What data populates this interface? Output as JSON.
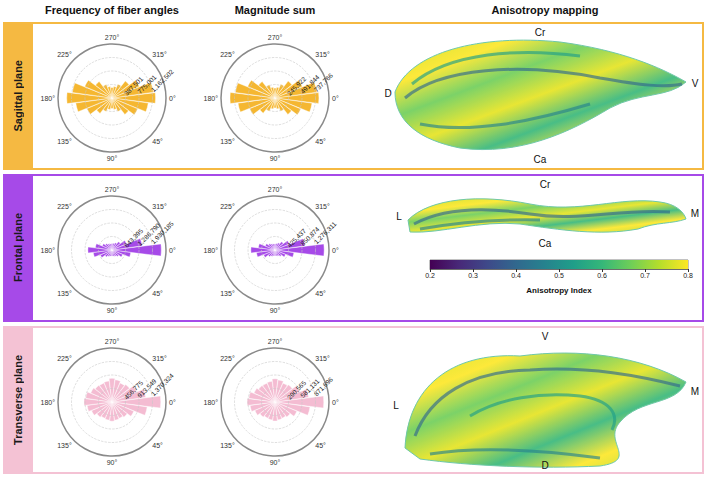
{
  "column_titles": [
    "Frequency of fiber angles",
    "Magnitude sum",
    "Anisotropy mapping"
  ],
  "rows": [
    {
      "label": "Sagittal plane",
      "color": "#f5b942",
      "directions": [
        "Cr",
        "Ca",
        "D",
        "V"
      ]
    },
    {
      "label": "Frontal plane",
      "color": "#a64ae8",
      "directions": [
        "Cr",
        "Ca",
        "L",
        "M"
      ]
    },
    {
      "label": "Transverse plane",
      "color": "#f4c2d4",
      "directions": [
        "V",
        "D",
        "L",
        "M"
      ]
    }
  ],
  "chart_data": [
    {
      "type": "polar",
      "color": "#f5b731",
      "grid": true,
      "categories": [
        "0°",
        null,
        null,
        "45°",
        null,
        null,
        "90°",
        null,
        null,
        "135°",
        null,
        null,
        "180°",
        null,
        null,
        "225°",
        null,
        null,
        "270°",
        null,
        null,
        "315°",
        null,
        null
      ],
      "values": [
        1250000,
        1050000,
        800000,
        600000,
        420000,
        330000,
        300000,
        330000,
        420000,
        560000,
        780000,
        1050000,
        1300000,
        1150000,
        850000,
        600000,
        420000,
        330000,
        300000,
        330000,
        430000,
        620000,
        850000,
        1200000
      ],
      "ylim": [
        0,
        1550003
      ],
      "yticks": [
        387501,
        775001,
        1162502
      ]
    },
    {
      "type": "polar",
      "color": "#f5b731",
      "grid": true,
      "categories": [
        "0°",
        null,
        null,
        "45°",
        null,
        null,
        "90°",
        null,
        null,
        "135°",
        null,
        null,
        "180°",
        null,
        null,
        "225°",
        null,
        null,
        "270°",
        null,
        null,
        "315°",
        null,
        null
      ],
      "values": [
        800000,
        680000,
        510000,
        380000,
        260000,
        200000,
        180000,
        200000,
        260000,
        350000,
        500000,
        680000,
        820000,
        730000,
        540000,
        380000,
        260000,
        200000,
        180000,
        200000,
        270000,
        390000,
        540000,
        770000
      ],
      "ylim": [
        0,
        983688
      ],
      "yticks": [
        245922,
        491844,
        737766
      ]
    },
    {
      "type": "polar",
      "color": "#a64ae8",
      "grid": true,
      "categories": [
        "0°",
        null,
        null,
        "45°",
        null,
        null,
        "90°",
        null,
        null,
        "135°",
        null,
        null,
        "180°",
        null,
        null,
        "225°",
        null,
        null,
        "270°",
        null,
        null,
        "315°",
        null,
        null
      ],
      "values": [
        2350000,
        900000,
        550000,
        400000,
        330000,
        300000,
        290000,
        300000,
        340000,
        420000,
        600000,
        900000,
        1150000,
        800000,
        500000,
        400000,
        330000,
        300000,
        300000,
        320000,
        380000,
        500000,
        750000,
        1450000
      ],
      "ylim": [
        0,
        2573580
      ],
      "yticks": [
        643395,
        1286790,
        1930185
      ]
    },
    {
      "type": "polar",
      "color": "#a64ae8",
      "grid": true,
      "categories": [
        "0°",
        null,
        null,
        "45°",
        null,
        null,
        "90°",
        null,
        null,
        "135°",
        null,
        null,
        "180°",
        null,
        null,
        "225°",
        null,
        null,
        "270°",
        null,
        null,
        "315°",
        null,
        null
      ],
      "values": [
        1550000,
        600000,
        360000,
        260000,
        210000,
        190000,
        185000,
        190000,
        220000,
        270000,
        390000,
        590000,
        760000,
        530000,
        330000,
        260000,
        215000,
        195000,
        190000,
        205000,
        245000,
        330000,
        490000,
        950000
      ],
      "ylim": [
        0,
        1701748
      ],
      "yticks": [
        425437,
        850874,
        1276311
      ]
    },
    {
      "type": "polar",
      "color": "#f4bcd2",
      "grid": true,
      "categories": [
        "0°",
        null,
        null,
        "45°",
        null,
        null,
        "90°",
        null,
        null,
        "135°",
        null,
        null,
        "180°",
        null,
        null,
        "225°",
        null,
        null,
        "270°",
        null,
        null,
        "315°",
        null,
        null
      ],
      "values": [
        1650000,
        1200000,
        800000,
        650000,
        600000,
        620000,
        650000,
        620000,
        600000,
        650000,
        750000,
        850000,
        950000,
        900000,
        780000,
        720000,
        700000,
        720000,
        800000,
        760000,
        700000,
        750000,
        900000,
        1150000
      ],
      "ylim": [
        0,
        1827099
      ],
      "yticks": [
        456775,
        913549,
        1370324
      ]
    },
    {
      "type": "polar",
      "color": "#f4bcd2",
      "grid": true,
      "categories": [
        "0°",
        null,
        null,
        "45°",
        null,
        null,
        "90°",
        null,
        null,
        "135°",
        null,
        null,
        "180°",
        null,
        null,
        "225°",
        null,
        null,
        "270°",
        null,
        null,
        "315°",
        null,
        null
      ],
      "values": [
        1050000,
        760000,
        510000,
        410000,
        380000,
        390000,
        410000,
        390000,
        380000,
        410000,
        470000,
        540000,
        600000,
        570000,
        490000,
        450000,
        440000,
        450000,
        500000,
        480000,
        440000,
        470000,
        570000,
        730000
      ],
      "ylim": [
        0,
        1162261
      ],
      "yticks": [
        290565,
        581131,
        871696
      ]
    }
  ],
  "colorbar": {
    "label": "Anisotropy Index",
    "range": [
      0.2,
      0.8
    ],
    "ticks": [
      0.2,
      0.3,
      0.4,
      0.5,
      0.6,
      0.7,
      0.8
    ]
  }
}
